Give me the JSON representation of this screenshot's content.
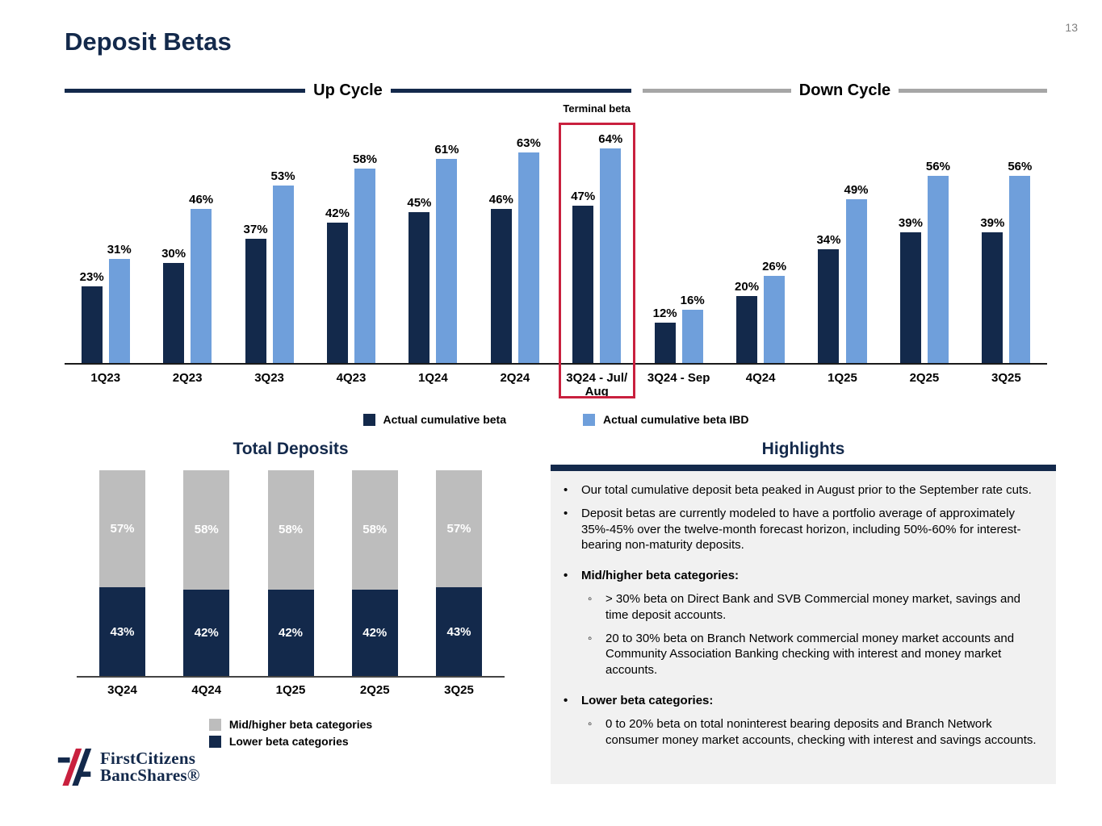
{
  "page": {
    "number": "13",
    "title": "Deposit Betas"
  },
  "chart_data": [
    {
      "type": "bar",
      "title": "Deposit Betas",
      "cycles": {
        "up": {
          "label": "Up Cycle",
          "category_count": 7
        },
        "down": {
          "label": "Down Cycle",
          "category_count": 5
        }
      },
      "categories": [
        "1Q23",
        "2Q23",
        "3Q23",
        "4Q23",
        "1Q24",
        "2Q24",
        "3Q24 - Jul/ Aug",
        "3Q24 - Sep",
        "4Q24",
        "1Q25",
        "2Q25",
        "3Q25"
      ],
      "series": [
        {
          "name": "Actual cumulative beta",
          "color": "#13294B",
          "values": [
            23,
            30,
            37,
            42,
            45,
            46,
            47,
            12,
            20,
            34,
            39,
            39
          ]
        },
        {
          "name": "Actual cumulative beta IBD",
          "color": "#6F9FDB",
          "values": [
            31,
            46,
            53,
            58,
            61,
            63,
            64,
            16,
            26,
            49,
            56,
            56
          ]
        }
      ],
      "unit": "%",
      "ylim": [
        0,
        70
      ],
      "grid": false,
      "legend_position": "bottom",
      "highlight": {
        "category_index": 6,
        "label": "Terminal beta",
        "box_color": "#C9203E"
      }
    },
    {
      "type": "bar",
      "stacked": true,
      "title": "Total Deposits",
      "categories": [
        "3Q24",
        "4Q24",
        "1Q25",
        "2Q25",
        "3Q25"
      ],
      "series": [
        {
          "name": "Lower beta categories",
          "color": "#13294B",
          "values": [
            43,
            42,
            42,
            42,
            43
          ]
        },
        {
          "name": "Mid/higher beta categories",
          "color": "#BDBDBD",
          "values": [
            57,
            58,
            58,
            58,
            57
          ]
        }
      ],
      "unit": "%",
      "ylim": [
        0,
        100
      ],
      "legend_position": "bottom"
    }
  ],
  "highlights": {
    "title": "Highlights",
    "bullets": [
      {
        "level": 1,
        "bold": false,
        "text": "Our total cumulative deposit beta peaked in August prior to the September rate cuts."
      },
      {
        "level": 1,
        "bold": false,
        "text": "Deposit betas are currently modeled to have a portfolio average of approximately 35%-45% over the twelve-month forecast horizon, including 50%-60% for interest-bearing non-maturity deposits."
      },
      {
        "level": 1,
        "bold": true,
        "text": "Mid/higher beta categories:"
      },
      {
        "level": 2,
        "bold": false,
        "text": "> 30% beta on Direct Bank and SVB Commercial money market, savings and time deposit accounts."
      },
      {
        "level": 2,
        "bold": false,
        "text": "20 to 30% beta on Branch Network commercial money market accounts and Community Association Banking checking with interest and money market accounts."
      },
      {
        "level": 1,
        "bold": true,
        "text": "Lower beta categories:"
      },
      {
        "level": 2,
        "bold": false,
        "text": "0 to 20% beta on total noninterest bearing deposits and Branch Network consumer money market accounts, checking with interest and savings accounts."
      }
    ]
  },
  "logo": {
    "line1": "FirstCitizens",
    "line2": "BancShares®"
  }
}
